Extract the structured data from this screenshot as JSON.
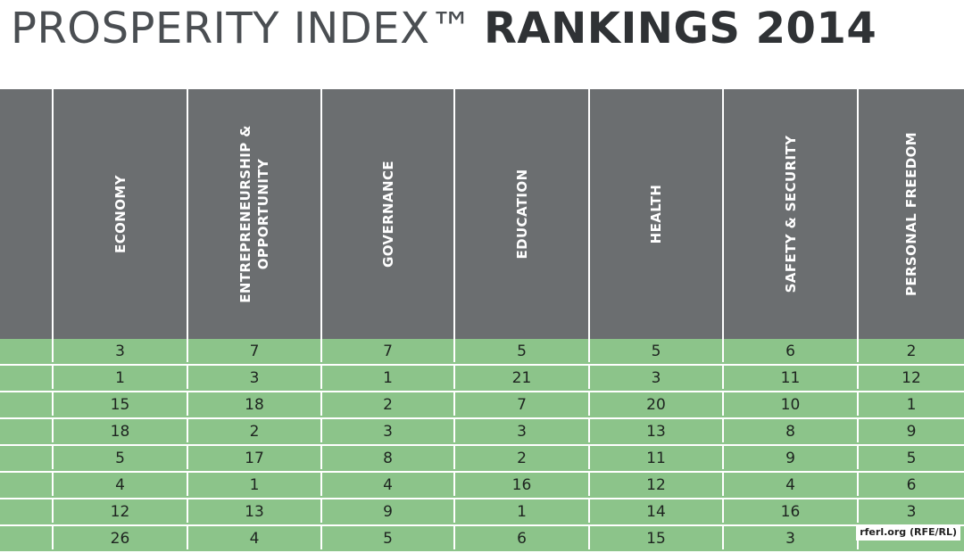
{
  "title": {
    "light": "PROSPERITY INDEX™",
    "bold": "RANKINGS 2014"
  },
  "columns": [
    "",
    "ECONOMY",
    "ENTREPRENEURSHIP &\nOPPORTUNITY",
    "GOVERNANCE",
    "EDUCATION",
    "HEALTH",
    "SAFETY & SECURITY",
    "PERSONAL FREEDOM"
  ],
  "rows": [
    [
      "",
      "3",
      "7",
      "7",
      "5",
      "5",
      "6",
      "2"
    ],
    [
      "",
      "1",
      "3",
      "1",
      "21",
      "3",
      "11",
      "12"
    ],
    [
      "",
      "15",
      "18",
      "2",
      "7",
      "20",
      "10",
      "1"
    ],
    [
      "",
      "18",
      "2",
      "3",
      "3",
      "13",
      "8",
      "9"
    ],
    [
      "",
      "5",
      "17",
      "8",
      "2",
      "11",
      "9",
      "5"
    ],
    [
      "",
      "4",
      "1",
      "4",
      "16",
      "12",
      "4",
      "6"
    ],
    [
      "",
      "12",
      "13",
      "9",
      "1",
      "14",
      "16",
      "3"
    ],
    [
      "",
      "26",
      "4",
      "5",
      "6",
      "15",
      "3",
      ""
    ]
  ],
  "source": "rferl.org (RFE/RL)"
}
